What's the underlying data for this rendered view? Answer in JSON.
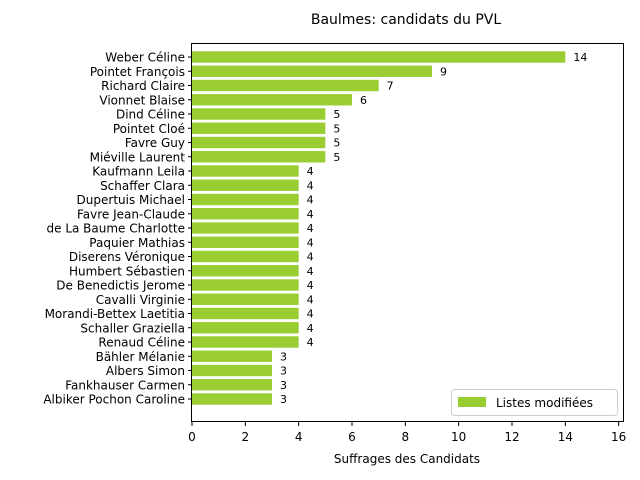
{
  "chart_data": {
    "type": "bar",
    "orientation": "horizontal",
    "title": "Baulmes: candidats du PVL",
    "xlabel": "Suffrages des Candidats",
    "ylabel": "",
    "xlim": [
      0,
      16.2
    ],
    "xticks": [
      0,
      2,
      4,
      6,
      8,
      10,
      12,
      14,
      16
    ],
    "grid": false,
    "legend_position": "lower-right",
    "categories": [
      "Weber Céline",
      "Pointet François",
      "Richard Claire",
      "Vionnet Blaise",
      "Dind Céline",
      "Pointet Cloé",
      "Favre Guy",
      "Miéville Laurent",
      "Kaufmann Leila",
      "Schaffer Clara",
      "Dupertuis Michael",
      "Favre Jean-Claude",
      "de La Baume Charlotte",
      "Paquier Mathias",
      "Diserens Véronique",
      "Humbert Sébastien",
      "De Benedictis Jerome",
      "Cavalli Virginie",
      "Morandi-Bettex Laetitia",
      "Schaller Graziella",
      "Renaud Céline",
      "Bähler Mélanie",
      "Albers Simon",
      "Fankhauser Carmen",
      "Albiker Pochon Caroline"
    ],
    "series": [
      {
        "name": "Listes modifiées",
        "color": "#9acd32",
        "values": [
          14,
          9,
          7,
          6,
          5,
          5,
          5,
          5,
          4,
          4,
          4,
          4,
          4,
          4,
          4,
          4,
          4,
          4,
          4,
          4,
          4,
          3,
          3,
          3,
          3
        ]
      }
    ]
  }
}
